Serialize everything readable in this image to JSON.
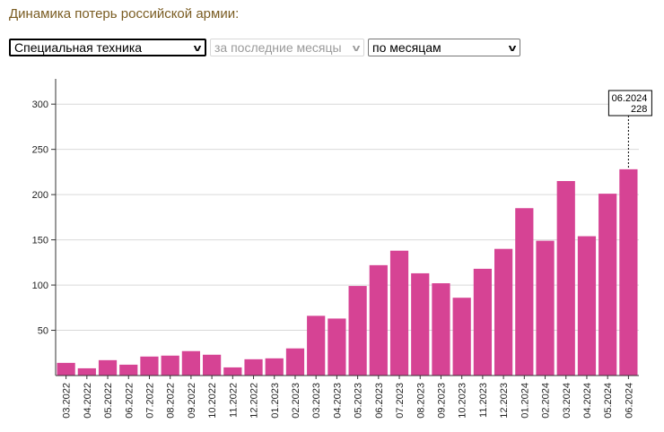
{
  "page": {
    "title": "Динамика потерь российской армии:"
  },
  "controls": {
    "type_select": {
      "value": "Специальная техника"
    },
    "period_select": {
      "value": "за последние месяцы"
    },
    "group_select": {
      "value": "по месяцам"
    }
  },
  "colors": {
    "bar": "#d64394",
    "title": "#7a5c22",
    "grid": "#d9d9d9",
    "axis": "#333333"
  },
  "chart_data": {
    "type": "bar",
    "categories": [
      "03.2022",
      "04.2022",
      "05.2022",
      "06.2022",
      "07.2022",
      "08.2022",
      "09.2022",
      "10.2022",
      "11.2022",
      "12.2022",
      "01.2023",
      "02.2023",
      "03.2023",
      "04.2023",
      "05.2023",
      "06.2023",
      "07.2023",
      "08.2023",
      "09.2023",
      "10.2023",
      "11.2023",
      "12.2023",
      "01.2024",
      "02.2024",
      "03.2024",
      "04.2024",
      "05.2024",
      "06.2024"
    ],
    "values": [
      14,
      8,
      17,
      12,
      21,
      22,
      27,
      23,
      9,
      18,
      19,
      30,
      66,
      63,
      99,
      122,
      138,
      113,
      102,
      86,
      118,
      140,
      185,
      149,
      215,
      154,
      201,
      228
    ],
    "yticks": [
      50,
      100,
      150,
      200,
      250,
      300
    ],
    "ylim": [
      0,
      320
    ],
    "grid": true,
    "tooltip": {
      "label": "06.2024",
      "value": "228"
    }
  }
}
